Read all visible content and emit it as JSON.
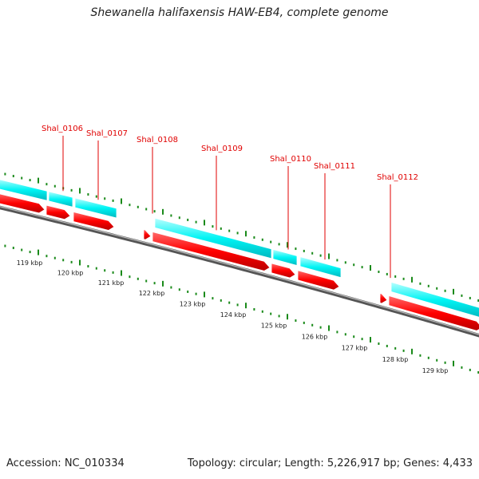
{
  "title": "Shewanella halifaxensis HAW-EB4, complete genome",
  "footer": {
    "accession": "Accession: NC_010334",
    "topology": "Topology: circular; Length: 5,226,917 bp; Genes: 4,433"
  },
  "colors": {
    "gene_label": "#e00000",
    "cds": "#ff0000",
    "gene": "#00ffff",
    "backbone": "#888888",
    "ticks": "#1a8a1a"
  },
  "genes": [
    {
      "name": "Shal_0106"
    },
    {
      "name": "Shal_0107"
    },
    {
      "name": "Shal_0108"
    },
    {
      "name": "Shal_0109"
    },
    {
      "name": "Shal_0110"
    },
    {
      "name": "Shal_0111"
    },
    {
      "name": "Shal_0112"
    }
  ],
  "kbp_labels": [
    "119 kbp",
    "120 kbp",
    "121 kbp",
    "122 kbp",
    "123 kbp",
    "124 kbp",
    "125 kbp",
    "126 kbp",
    "127 kbp",
    "128 kbp",
    "129 kbp"
  ]
}
